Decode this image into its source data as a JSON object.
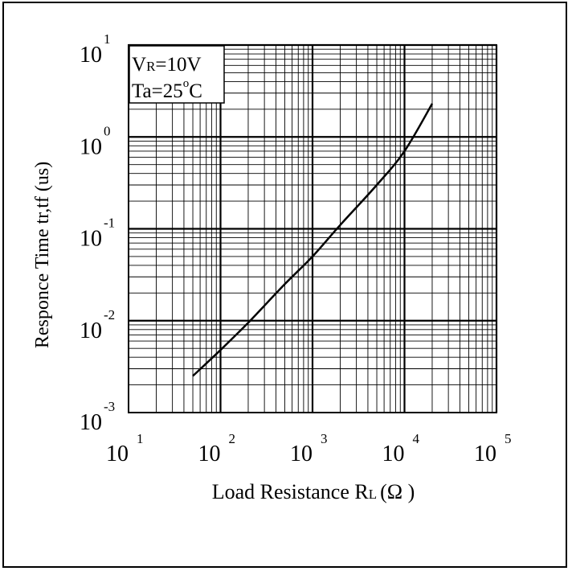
{
  "chart_data": {
    "type": "line",
    "x_scale": "log",
    "y_scale": "log",
    "xlim": [
      10,
      100000
    ],
    "ylim": [
      0.001,
      10
    ],
    "x_ticks": [
      {
        "base": "10",
        "exp": "1"
      },
      {
        "base": "10",
        "exp": "2"
      },
      {
        "base": "10",
        "exp": "3"
      },
      {
        "base": "10",
        "exp": "4"
      },
      {
        "base": "10",
        "exp": "5"
      }
    ],
    "y_ticks": [
      {
        "base": "10",
        "exp": "-3"
      },
      {
        "base": "10",
        "exp": "-2"
      },
      {
        "base": "10",
        "exp": "-1"
      },
      {
        "base": "10",
        "exp": "0"
      },
      {
        "base": "10",
        "exp": "1"
      }
    ],
    "xlabel": {
      "main": "Load Resistance R",
      "sub": "L",
      "unit": "(Ω )"
    },
    "ylabel": "Responce Time tr,tf (us)",
    "grid": true,
    "annotation": {
      "line1": {
        "main": "V",
        "sub": "R",
        "rest": "=10V"
      },
      "line2": {
        "main": "Ta=25",
        "sup": "o",
        "rest": "C"
      }
    },
    "series": [
      {
        "x": [
          50,
          100,
          200,
          500,
          1000,
          2000,
          5000,
          10000,
          20000
        ],
        "y": [
          0.0025,
          0.0048,
          0.0095,
          0.025,
          0.05,
          0.11,
          0.3,
          0.7,
          2.3
        ]
      }
    ],
    "line_color": "#000000"
  }
}
